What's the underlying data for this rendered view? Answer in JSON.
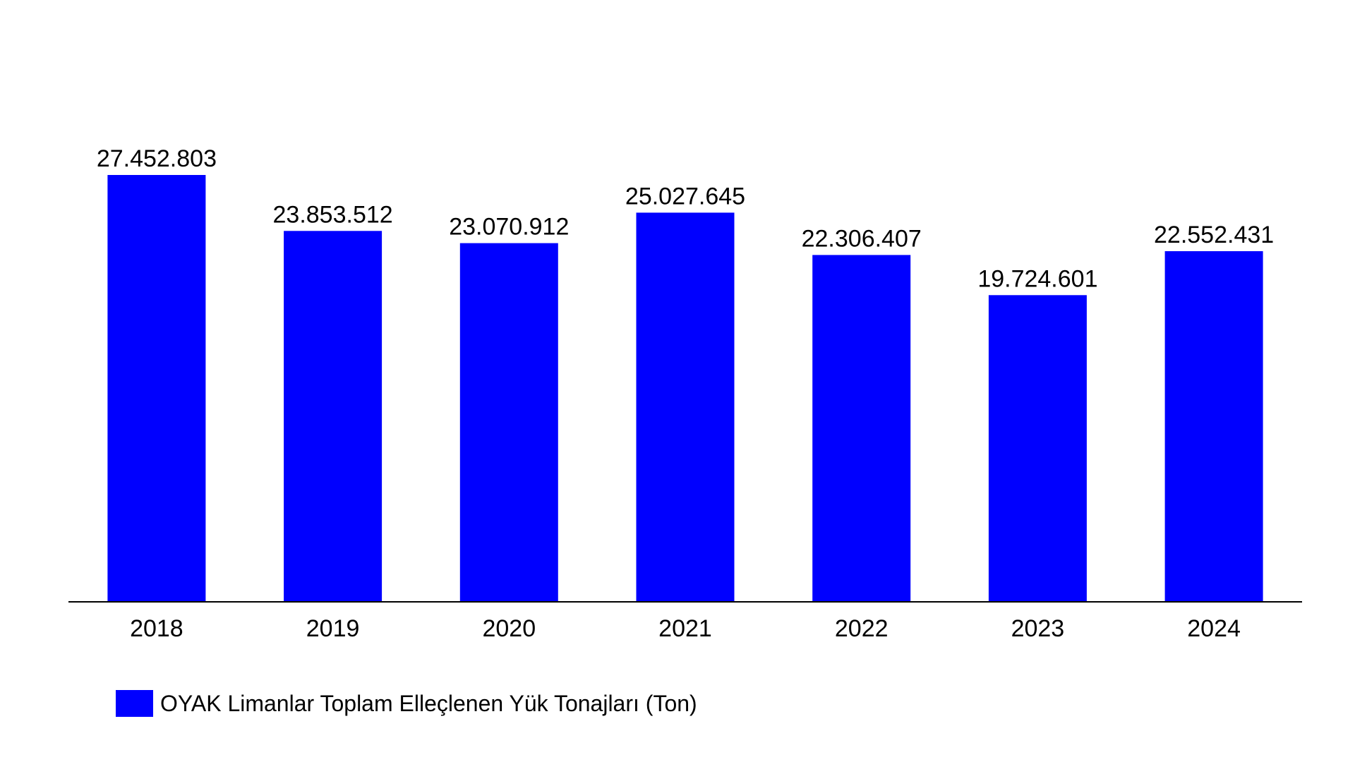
{
  "chart_data": {
    "type": "bar",
    "categories": [
      "2018",
      "2019",
      "2020",
      "2021",
      "2022",
      "2023",
      "2024"
    ],
    "series": [
      {
        "name": "OYAK Limanlar Toplam Elleçlenen Yük Tonajları (Ton)",
        "values": [
          27452803,
          23853512,
          23070912,
          25027645,
          22306407,
          19724601,
          22552431
        ],
        "labels": [
          "27.452.803",
          "23.853.512",
          "23.070.912",
          "25.027.645",
          "22.306.407",
          "19.724.601",
          "22.552.431"
        ],
        "color": "#0000ff"
      }
    ],
    "title": "",
    "xlabel": "",
    "ylabel": "",
    "ylim": [
      0,
      27452803
    ],
    "grid": false,
    "legend": "bottom-left"
  }
}
